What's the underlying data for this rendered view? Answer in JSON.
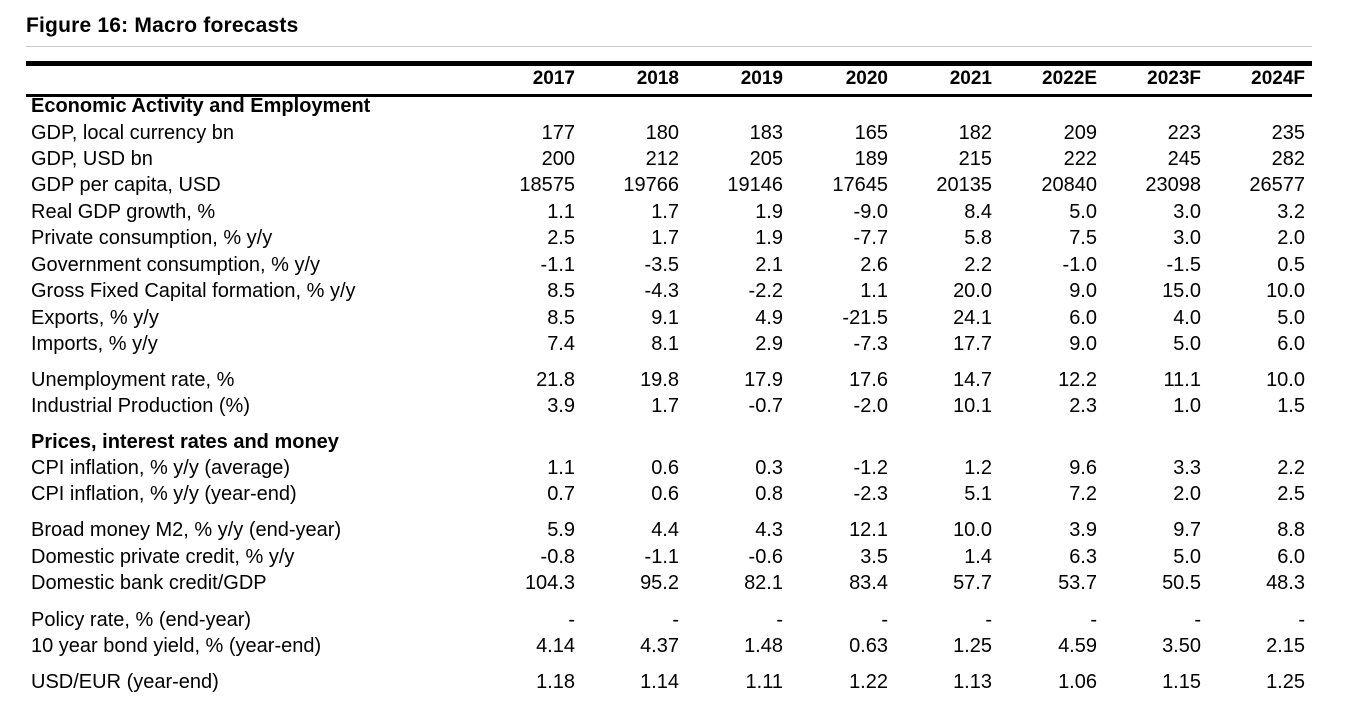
{
  "title": "Figure 16: Macro forecasts",
  "years": [
    "2017",
    "2018",
    "2019",
    "2020",
    "2021",
    "2022E",
    "2023F",
    "2024F"
  ],
  "sections": [
    {
      "heading": "Economic Activity and Employment"
    },
    {
      "heading": "Prices, interest rates and money"
    }
  ],
  "rows": [
    {
      "label": "GDP, local currency bn",
      "values": [
        "177",
        "180",
        "183",
        "165",
        "182",
        "209",
        "223",
        "235"
      ]
    },
    {
      "label": "GDP, USD bn",
      "values": [
        "200",
        "212",
        "205",
        "189",
        "215",
        "222",
        "245",
        "282"
      ]
    },
    {
      "label": "GDP per capita, USD",
      "values": [
        "18575",
        "19766",
        "19146",
        "17645",
        "20135",
        "20840",
        "23098",
        "26577"
      ]
    },
    {
      "label": "Real GDP growth, %",
      "values": [
        "1.1",
        "1.7",
        "1.9",
        "-9.0",
        "8.4",
        "5.0",
        "3.0",
        "3.2"
      ]
    },
    {
      "label": "Private consumption, % y/y",
      "values": [
        "2.5",
        "1.7",
        "1.9",
        "-7.7",
        "5.8",
        "7.5",
        "3.0",
        "2.0"
      ]
    },
    {
      "label": "Government consumption, % y/y",
      "values": [
        "-1.1",
        "-3.5",
        "2.1",
        "2.6",
        "2.2",
        "-1.0",
        "-1.5",
        "0.5"
      ]
    },
    {
      "label": "Gross Fixed Capital formation, % y/y",
      "values": [
        "8.5",
        "-4.3",
        "-2.2",
        "1.1",
        "20.0",
        "9.0",
        "15.0",
        "10.0"
      ]
    },
    {
      "label": "Exports, % y/y",
      "values": [
        "8.5",
        "9.1",
        "4.9",
        "-21.5",
        "24.1",
        "6.0",
        "4.0",
        "5.0"
      ]
    },
    {
      "label": "Imports, % y/y",
      "values": [
        "7.4",
        "8.1",
        "2.9",
        "-7.3",
        "17.7",
        "9.0",
        "5.0",
        "6.0"
      ]
    },
    {
      "label": "Unemployment rate, %",
      "values": [
        "21.8",
        "19.8",
        "17.9",
        "17.6",
        "14.7",
        "12.2",
        "11.1",
        "10.0"
      ]
    },
    {
      "label": "Industrial Production (%)",
      "values": [
        "3.9",
        "1.7",
        "-0.7",
        "-2.0",
        "10.1",
        "2.3",
        "1.0",
        "1.5"
      ]
    },
    {
      "label": "CPI inflation, % y/y (average)",
      "values": [
        "1.1",
        "0.6",
        "0.3",
        "-1.2",
        "1.2",
        "9.6",
        "3.3",
        "2.2"
      ]
    },
    {
      "label": "CPI inflation, % y/y (year-end)",
      "values": [
        "0.7",
        "0.6",
        "0.8",
        "-2.3",
        "5.1",
        "7.2",
        "2.0",
        "2.5"
      ]
    },
    {
      "label": "Broad money M2, % y/y (end-year)",
      "values": [
        "5.9",
        "4.4",
        "4.3",
        "12.1",
        "10.0",
        "3.9",
        "9.7",
        "8.8"
      ]
    },
    {
      "label": "Domestic private credit, % y/y",
      "values": [
        "-0.8",
        "-1.1",
        "-0.6",
        "3.5",
        "1.4",
        "6.3",
        "5.0",
        "6.0"
      ]
    },
    {
      "label": "Domestic bank credit/GDP",
      "values": [
        "104.3",
        "95.2",
        "82.1",
        "83.4",
        "57.7",
        "53.7",
        "50.5",
        "48.3"
      ]
    },
    {
      "label": "Policy rate, % (end-year)",
      "values": [
        "-",
        "-",
        "-",
        "-",
        "-",
        "-",
        "-",
        "-"
      ]
    },
    {
      "label": "10 year bond yield, % (year-end)",
      "values": [
        "4.14",
        "4.37",
        "1.48",
        "0.63",
        "1.25",
        "4.59",
        "3.50",
        "2.15"
      ]
    },
    {
      "label": "USD/EUR (year-end)",
      "values": [
        "1.18",
        "1.14",
        "1.11",
        "1.22",
        "1.13",
        "1.06",
        "1.15",
        "1.25"
      ]
    }
  ]
}
